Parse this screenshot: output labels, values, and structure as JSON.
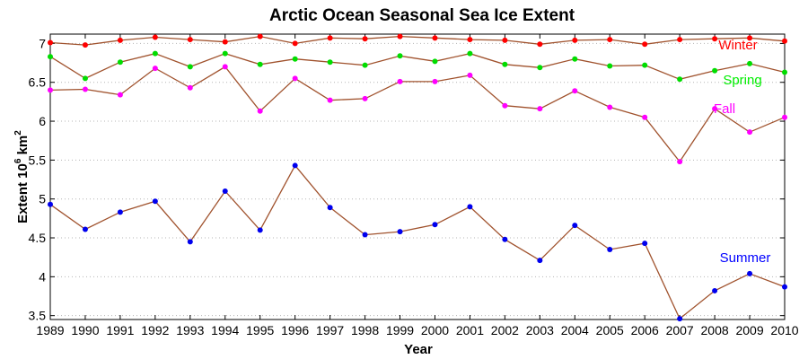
{
  "chart_data": {
    "type": "line",
    "title": "Arctic Ocean Seasonal Sea Ice Extent",
    "xlabel": "Year",
    "ylabel_main": "Extent 10",
    "ylabel_sup": "6",
    "ylabel_unit": " km",
    "ylabel_unit_sup": "2",
    "xlim": [
      1989,
      2010
    ],
    "ylim": [
      3.45,
      7.12
    ],
    "yticks": [
      3.5,
      4,
      4.5,
      5,
      5.5,
      6,
      6.5,
      7
    ],
    "ytick_labels": [
      "3.5",
      "4",
      "4.5",
      "5",
      "5.5",
      "6",
      "6.5",
      "7"
    ],
    "x": [
      1989,
      1990,
      1991,
      1992,
      1993,
      1994,
      1995,
      1996,
      1997,
      1998,
      1999,
      2000,
      2001,
      2002,
      2003,
      2004,
      2005,
      2006,
      2007,
      2008,
      2009,
      2010
    ],
    "xtick_labels": [
      "1989",
      "1990",
      "1991",
      "1992",
      "1993",
      "1994",
      "1995",
      "1996",
      "1997",
      "1998",
      "1999",
      "2000",
      "2001",
      "2002",
      "2003",
      "2004",
      "2005",
      "2006",
      "2007",
      "2008",
      "2009",
      "2010"
    ],
    "grid": "y",
    "line_color": "#a0522d",
    "series": [
      {
        "name": "Winter",
        "color": "#ff0000",
        "label_color": "#ff0000",
        "values": [
          7.01,
          6.98,
          7.04,
          7.08,
          7.05,
          7.02,
          7.09,
          7.0,
          7.07,
          7.06,
          7.09,
          7.07,
          7.05,
          7.04,
          6.99,
          7.04,
          7.05,
          6.99,
          7.05,
          7.06,
          7.07,
          7.03
        ]
      },
      {
        "name": "Spring",
        "color": "#00dd00",
        "label_color": "#00ee00",
        "values": [
          6.83,
          6.55,
          6.76,
          6.87,
          6.7,
          6.87,
          6.73,
          6.8,
          6.76,
          6.72,
          6.84,
          6.77,
          6.87,
          6.73,
          6.69,
          6.8,
          6.71,
          6.72,
          6.54,
          6.65,
          6.74,
          6.63
        ]
      },
      {
        "name": "Fall",
        "color": "#ff00ff",
        "label_color": "#ff00ff",
        "values": [
          6.4,
          6.41,
          6.34,
          6.68,
          6.43,
          6.7,
          6.13,
          6.55,
          6.27,
          6.29,
          6.51,
          6.51,
          6.59,
          6.2,
          6.16,
          6.39,
          6.18,
          6.05,
          5.48,
          6.16,
          5.86,
          6.05
        ]
      },
      {
        "name": "Summer",
        "color": "#0000ee",
        "label_color": "#0000ff",
        "values": [
          4.93,
          4.61,
          4.83,
          4.97,
          4.45,
          5.1,
          4.6,
          5.43,
          4.89,
          4.54,
          4.58,
          4.67,
          4.9,
          4.48,
          4.21,
          4.66,
          4.35,
          4.43,
          3.46,
          3.82,
          4.04,
          3.87
        ]
      }
    ]
  }
}
